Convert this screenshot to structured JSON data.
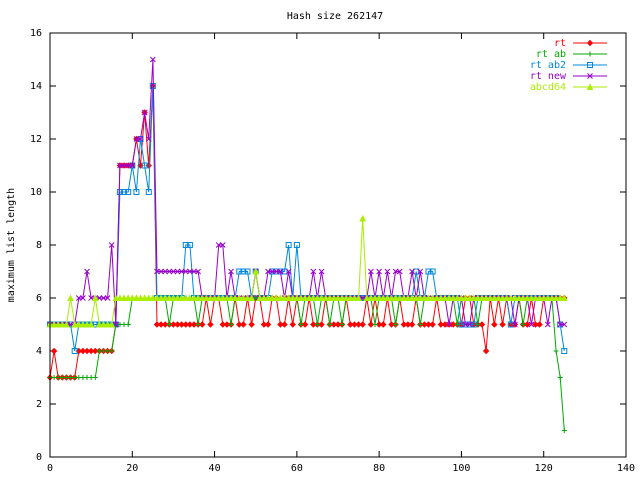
{
  "chart_data": {
    "type": "line",
    "title": "Hash size 262147",
    "xlabel": "",
    "ylabel": "maximum list length",
    "xlim": [
      0,
      140
    ],
    "ylim": [
      0,
      16
    ],
    "x_ticks": [
      "0",
      "20",
      "40",
      "60",
      "80",
      "100",
      "120",
      "140"
    ],
    "y_ticks": [
      "0",
      "2",
      "4",
      "6",
      "8",
      "10",
      "12",
      "14",
      "16"
    ],
    "grid": false,
    "legend_position": "top-right",
    "series": [
      {
        "name": "rt",
        "color": "#ff0000",
        "marker": "diamond",
        "x": [
          0,
          1,
          2,
          3,
          4,
          5,
          6,
          7,
          8,
          9,
          10,
          11,
          12,
          13,
          14,
          15,
          16,
          17,
          18,
          19,
          20,
          21,
          22,
          23,
          24,
          25,
          26,
          27,
          28,
          29,
          30,
          31,
          32,
          33,
          34,
          35,
          36,
          37,
          38,
          39,
          40,
          41,
          42,
          43,
          44,
          45,
          46,
          47,
          48,
          49,
          50,
          51,
          52,
          53,
          54,
          55,
          56,
          57,
          58,
          59,
          60,
          61,
          62,
          63,
          64,
          65,
          66,
          67,
          68,
          69,
          70,
          71,
          72,
          73,
          74,
          75,
          76,
          77,
          78,
          79,
          80,
          81,
          82,
          83,
          84,
          85,
          86,
          87,
          88,
          89,
          90,
          91,
          92,
          93,
          94,
          95,
          96,
          97,
          98,
          99,
          100,
          101,
          102,
          103,
          104,
          105,
          106,
          107,
          108,
          109,
          110,
          111,
          112,
          113,
          114,
          115,
          116,
          117,
          118,
          119,
          120,
          121,
          122,
          123,
          124,
          125
        ],
        "y": [
          3,
          4,
          3,
          3,
          3,
          3,
          3,
          4,
          4,
          4,
          4,
          4,
          4,
          4,
          4,
          4,
          5,
          11,
          11,
          11,
          11,
          12,
          11,
          13,
          11,
          14,
          5,
          5,
          5,
          5,
          5,
          5,
          5,
          5,
          5,
          5,
          5,
          5,
          6,
          5,
          6,
          6,
          5,
          5,
          5,
          6,
          5,
          5,
          6,
          5,
          6,
          6,
          5,
          5,
          6,
          6,
          5,
          5,
          6,
          5,
          6,
          5,
          5,
          6,
          5,
          5,
          5,
          6,
          5,
          5,
          5,
          5,
          6,
          5,
          5,
          5,
          5,
          6,
          5,
          6,
          5,
          5,
          6,
          5,
          5,
          6,
          5,
          5,
          5,
          6,
          5,
          5,
          5,
          5,
          6,
          5,
          5,
          5,
          5,
          5,
          5,
          6,
          6,
          5,
          5,
          5,
          4,
          6,
          5,
          6,
          5,
          6,
          5,
          5,
          6,
          5,
          5,
          6,
          5,
          5,
          6,
          6,
          6,
          6,
          6,
          6
        ]
      },
      {
        "name": "rt ab",
        "color": "#00aa00",
        "marker": "plus",
        "x": [
          0,
          1,
          2,
          3,
          4,
          5,
          6,
          7,
          8,
          9,
          10,
          11,
          12,
          13,
          14,
          15,
          16,
          17,
          18,
          19,
          20,
          21,
          22,
          23,
          24,
          25,
          26,
          27,
          28,
          29,
          30,
          31,
          32,
          33,
          34,
          35,
          36,
          37,
          38,
          39,
          40,
          41,
          42,
          43,
          44,
          45,
          46,
          47,
          48,
          49,
          50,
          51,
          52,
          53,
          54,
          55,
          56,
          57,
          58,
          59,
          60,
          61,
          62,
          63,
          64,
          65,
          66,
          67,
          68,
          69,
          70,
          71,
          72,
          73,
          74,
          75,
          76,
          77,
          78,
          79,
          80,
          81,
          82,
          83,
          84,
          85,
          86,
          87,
          88,
          89,
          90,
          91,
          92,
          93,
          94,
          95,
          96,
          97,
          98,
          99,
          100,
          101,
          102,
          103,
          104,
          105,
          106,
          107,
          108,
          109,
          110,
          111,
          112,
          113,
          114,
          115,
          116,
          117,
          118,
          119,
          120,
          121,
          122,
          123,
          124,
          125
        ],
        "y": [
          3,
          3,
          3,
          3,
          3,
          3,
          3,
          3,
          3,
          3,
          3,
          3,
          4,
          4,
          4,
          4,
          5,
          5,
          5,
          5,
          6,
          6,
          6,
          6,
          6,
          6,
          6,
          6,
          6,
          5,
          6,
          6,
          6,
          6,
          6,
          6,
          5,
          6,
          6,
          6,
          6,
          6,
          6,
          6,
          5,
          6,
          6,
          6,
          6,
          6,
          6,
          6,
          6,
          6,
          6,
          6,
          6,
          6,
          6,
          6,
          6,
          5,
          6,
          6,
          6,
          5,
          6,
          6,
          5,
          6,
          6,
          5,
          6,
          6,
          6,
          6,
          6,
          6,
          6,
          5,
          6,
          6,
          6,
          6,
          5,
          6,
          6,
          6,
          6,
          6,
          5,
          6,
          6,
          6,
          6,
          6,
          6,
          6,
          6,
          5,
          6,
          6,
          6,
          6,
          5,
          6,
          6,
          6,
          6,
          6,
          6,
          6,
          6,
          6,
          6,
          5,
          6,
          6,
          6,
          6,
          6,
          6,
          6,
          4,
          3,
          1
        ]
      },
      {
        "name": "rt ab2",
        "color": "#0088dd",
        "marker": "square",
        "x": [
          0,
          1,
          2,
          3,
          4,
          5,
          6,
          7,
          8,
          9,
          10,
          11,
          12,
          13,
          14,
          15,
          16,
          17,
          18,
          19,
          20,
          21,
          22,
          23,
          24,
          25,
          26,
          27,
          28,
          29,
          30,
          31,
          32,
          33,
          34,
          35,
          36,
          37,
          38,
          39,
          40,
          41,
          42,
          43,
          44,
          45,
          46,
          47,
          48,
          49,
          50,
          51,
          52,
          53,
          54,
          55,
          56,
          57,
          58,
          59,
          60,
          61,
          62,
          63,
          64,
          65,
          66,
          67,
          68,
          69,
          70,
          71,
          72,
          73,
          74,
          75,
          76,
          77,
          78,
          79,
          80,
          81,
          82,
          83,
          84,
          85,
          86,
          87,
          88,
          89,
          90,
          91,
          92,
          93,
          94,
          95,
          96,
          97,
          98,
          99,
          100,
          101,
          102,
          103,
          104,
          105,
          106,
          107,
          108,
          109,
          110,
          111,
          112,
          113,
          114,
          115,
          116,
          117,
          118,
          119,
          120,
          121,
          122,
          123,
          124,
          125
        ],
        "y": [
          5,
          5,
          5,
          5,
          5,
          5,
          4,
          5,
          5,
          5,
          5,
          5,
          5,
          5,
          5,
          5,
          5,
          10,
          10,
          10,
          11,
          10,
          12,
          11,
          10,
          14,
          6,
          6,
          6,
          6,
          6,
          6,
          6,
          8,
          8,
          6,
          6,
          6,
          6,
          6,
          6,
          6,
          6,
          6,
          6,
          6,
          7,
          7,
          7,
          6,
          7,
          6,
          6,
          6,
          7,
          7,
          7,
          7,
          8,
          6,
          8,
          6,
          6,
          6,
          6,
          6,
          6,
          6,
          6,
          6,
          6,
          6,
          6,
          6,
          6,
          6,
          6,
          6,
          6,
          6,
          6,
          6,
          6,
          6,
          6,
          6,
          6,
          6,
          6,
          7,
          6,
          6,
          7,
          7,
          6,
          6,
          6,
          6,
          6,
          6,
          5,
          5,
          5,
          5,
          6,
          6,
          6,
          6,
          6,
          6,
          6,
          6,
          5,
          6,
          6,
          6,
          6,
          6,
          6,
          6,
          6,
          6,
          6,
          6,
          5,
          4
        ]
      },
      {
        "name": "rt new",
        "color": "#9900cc",
        "marker": "x",
        "x": [
          0,
          1,
          2,
          3,
          4,
          5,
          6,
          7,
          8,
          9,
          10,
          11,
          12,
          13,
          14,
          15,
          16,
          17,
          18,
          19,
          20,
          21,
          22,
          23,
          24,
          25,
          26,
          27,
          28,
          29,
          30,
          31,
          32,
          33,
          34,
          35,
          36,
          37,
          38,
          39,
          40,
          41,
          42,
          43,
          44,
          45,
          46,
          47,
          48,
          49,
          50,
          51,
          52,
          53,
          54,
          55,
          56,
          57,
          58,
          59,
          60,
          61,
          62,
          63,
          64,
          65,
          66,
          67,
          68,
          69,
          70,
          71,
          72,
          73,
          74,
          75,
          76,
          77,
          78,
          79,
          80,
          81,
          82,
          83,
          84,
          85,
          86,
          87,
          88,
          89,
          90,
          91,
          92,
          93,
          94,
          95,
          96,
          97,
          98,
          99,
          100,
          101,
          102,
          103,
          104,
          105,
          106,
          107,
          108,
          109,
          110,
          111,
          112,
          113,
          114,
          115,
          116,
          117,
          118,
          119,
          120,
          121,
          122,
          123,
          124,
          125
        ],
        "y": [
          5,
          5,
          5,
          5,
          5,
          5,
          5,
          6,
          6,
          7,
          6,
          6,
          6,
          6,
          6,
          8,
          5,
          11,
          11,
          11,
          11,
          12,
          12,
          13,
          12,
          15,
          7,
          7,
          7,
          7,
          7,
          7,
          7,
          7,
          7,
          7,
          7,
          6,
          6,
          6,
          6,
          8,
          8,
          6,
          7,
          6,
          6,
          6,
          6,
          6,
          7,
          6,
          6,
          7,
          7,
          7,
          7,
          6,
          7,
          6,
          6,
          6,
          6,
          6,
          7,
          6,
          7,
          6,
          6,
          6,
          6,
          6,
          6,
          6,
          6,
          6,
          6,
          6,
          7,
          6,
          7,
          6,
          7,
          6,
          7,
          7,
          6,
          6,
          7,
          6,
          7,
          6,
          6,
          6,
          6,
          6,
          6,
          5,
          6,
          6,
          6,
          5,
          5,
          6,
          6,
          6,
          6,
          6,
          6,
          6,
          6,
          6,
          6,
          5,
          6,
          6,
          6,
          5,
          6,
          6,
          6,
          5,
          6,
          6,
          5,
          5
        ]
      },
      {
        "name": "abcd64",
        "color": "#aaee00",
        "marker": "triangle",
        "x": [
          0,
          1,
          2,
          3,
          4,
          5,
          6,
          7,
          8,
          9,
          10,
          11,
          12,
          13,
          14,
          15,
          16,
          17,
          18,
          19,
          20,
          21,
          22,
          23,
          24,
          25,
          26,
          27,
          28,
          29,
          30,
          31,
          32,
          33,
          34,
          35,
          36,
          37,
          38,
          39,
          40,
          41,
          42,
          43,
          44,
          45,
          46,
          47,
          48,
          49,
          50,
          51,
          52,
          53,
          54,
          55,
          56,
          57,
          58,
          59,
          60,
          61,
          62,
          63,
          64,
          65,
          66,
          67,
          68,
          69,
          70,
          71,
          72,
          73,
          74,
          75,
          76,
          77,
          78,
          79,
          80,
          81,
          82,
          83,
          84,
          85,
          86,
          87,
          88,
          89,
          90,
          91,
          92,
          93,
          94,
          95,
          96,
          97,
          98,
          99,
          100,
          101,
          102,
          103,
          104,
          105,
          106,
          107,
          108,
          109,
          110,
          111,
          112,
          113,
          114,
          115,
          116,
          117,
          118,
          119,
          120,
          121,
          122,
          123,
          124,
          125
        ],
        "y": [
          5,
          5,
          5,
          5,
          5,
          6,
          5,
          5,
          5,
          5,
          5,
          6,
          5,
          5,
          5,
          5,
          6,
          6,
          6,
          6,
          6,
          6,
          6,
          6,
          6,
          6,
          6,
          6,
          6,
          6,
          6,
          6,
          6,
          6,
          6,
          6,
          6,
          6,
          6,
          6,
          6,
          6,
          6,
          6,
          6,
          6,
          6,
          6,
          6,
          6,
          7,
          6,
          6,
          6,
          6,
          6,
          6,
          6,
          6,
          6,
          6,
          6,
          6,
          6,
          6,
          6,
          6,
          6,
          6,
          6,
          6,
          6,
          6,
          6,
          6,
          6,
          9,
          6,
          6,
          6,
          6,
          6,
          6,
          6,
          6,
          6,
          6,
          6,
          6,
          6,
          6,
          6,
          6,
          6,
          6,
          6,
          6,
          6,
          6,
          6,
          6,
          6,
          6,
          6,
          6,
          6,
          6,
          6,
          6,
          6,
          6,
          6,
          6,
          6,
          6,
          6,
          6,
          6,
          6,
          6,
          6,
          6,
          6,
          6,
          6,
          6
        ]
      }
    ]
  }
}
